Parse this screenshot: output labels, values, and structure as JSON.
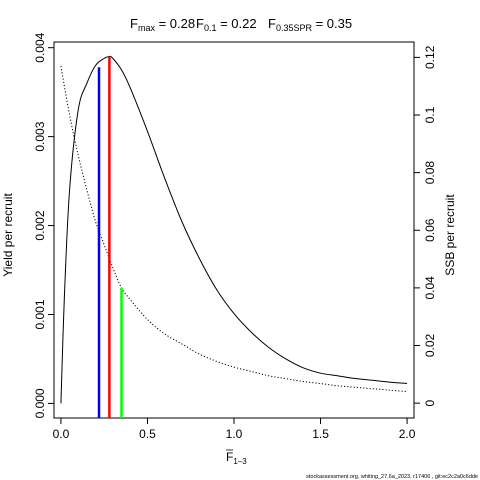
{
  "chart_data": {
    "type": "line",
    "title_parts": [
      {
        "base": "F",
        "sub": "max",
        "rest": " = 0.28"
      },
      {
        "base": "F",
        "sub": "0.1",
        "rest": " = 0.22"
      },
      {
        "base": "F",
        "sub": "0.35SPR",
        "rest": " = 0.35"
      }
    ],
    "xlabel": {
      "base": "F",
      "sub": "1–3"
    },
    "ylabel_left": "Yield per recruit",
    "ylabel_right": "SSB per recruit",
    "xlim": [
      -0.04,
      2.04
    ],
    "ylim_left": [
      -0.000164,
      0.004064
    ],
    "ylim_right": [
      -0.00516,
      0.12534
    ],
    "x_ticks": [
      0,
      0.5,
      1,
      1.5,
      2
    ],
    "x_tick_labels": [
      "0.0",
      "0.5",
      "1.0",
      "1.5",
      "2.0"
    ],
    "y_left_ticks": [
      0,
      0.001,
      0.002,
      0.003,
      0.004
    ],
    "y_left_tick_labels": [
      "0.000",
      "0.001",
      "0.002",
      "0.003",
      "0.004"
    ],
    "y_right_ticks": [
      0,
      0.02,
      0.04,
      0.06,
      0.08,
      0.1,
      0.12
    ],
    "y_right_tick_labels": [
      "0",
      "0.02",
      "0.04",
      "0.06",
      "0.08",
      "0.1",
      "0.12"
    ],
    "series": [
      {
        "axis": "left",
        "style": "solid",
        "color": "#000000",
        "x": [
          0,
          0.02,
          0.05,
          0.1,
          0.15,
          0.2,
          0.25,
          0.28,
          0.3,
          0.35,
          0.4,
          0.5,
          0.6,
          0.7,
          0.8,
          0.9,
          1.0,
          1.1,
          1.2,
          1.3,
          1.4,
          1.5,
          1.6,
          1.7,
          1.8,
          1.9,
          2.0
        ],
        "y": [
          0,
          0.0012,
          0.0024,
          0.0033,
          0.0036,
          0.0038,
          0.00388,
          0.0039,
          0.00388,
          0.00375,
          0.00355,
          0.00306,
          0.00253,
          0.00204,
          0.00163,
          0.00128,
          0.00101,
          0.0008,
          0.00063,
          0.0005,
          0.0004,
          0.00034,
          0.00031,
          0.00028,
          0.00026,
          0.00024,
          0.000225
        ]
      },
      {
        "axis": "right",
        "style": "dotted",
        "color": "#000000",
        "x": [
          0,
          0.05,
          0.1,
          0.15,
          0.2,
          0.25,
          0.3,
          0.35,
          0.4,
          0.5,
          0.6,
          0.7,
          0.8,
          0.9,
          1.0,
          1.1,
          1.2,
          1.3,
          1.4,
          1.5,
          1.6,
          1.7,
          1.8,
          1.9,
          2.0
        ],
        "y": [
          0.117,
          0.1,
          0.086,
          0.074,
          0.063,
          0.055,
          0.047,
          0.04,
          0.036,
          0.029,
          0.024,
          0.0205,
          0.017,
          0.0145,
          0.0125,
          0.011,
          0.0095,
          0.0085,
          0.0075,
          0.0068,
          0.006,
          0.0055,
          0.005,
          0.0045,
          0.004
        ]
      }
    ],
    "reference_lines": [
      {
        "name": "F0.1",
        "x": 0.22,
        "axis": "left",
        "top": 0.00378,
        "color": "#0000ff"
      },
      {
        "name": "Fmax",
        "x": 0.28,
        "axis": "left",
        "top": 0.0039,
        "color": "#ff0000"
      },
      {
        "name": "F0.35SPR",
        "x": 0.35,
        "axis": "right",
        "top": 0.04,
        "color": "#00ff00"
      }
    ],
    "footer_text": "stockassessment.org, whiting_27.6a_2023, r17406 , git:ec2c2a0c6dde"
  }
}
